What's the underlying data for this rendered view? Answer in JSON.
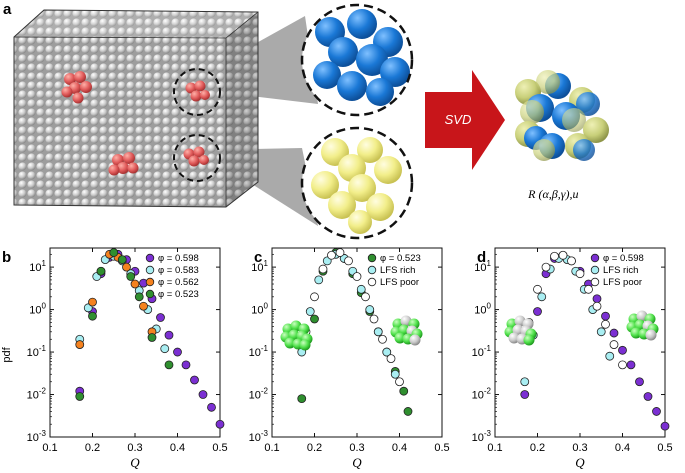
{
  "panel_a": {
    "label": "a",
    "arrow_label": "SVD",
    "rotation_formula": "R (α,β,γ),u⃗",
    "colors": {
      "blue": "#1a78d6",
      "yellow": "#f2ee8a",
      "red": "#e05a5a",
      "arrow": "#c8151a"
    }
  },
  "ylabel": "pdf",
  "chart_data": [
    {
      "type": "scatter",
      "label": "b",
      "xlabel": "Q",
      "ylabel": "pdf",
      "xlim": [
        0.1,
        0.5
      ],
      "ylim_log10": [
        -3,
        1.45
      ],
      "yscale": "log",
      "legend_placement": "top-right",
      "series": [
        {
          "name": "φ = 0.598",
          "color": "#7b2fd2",
          "x": [
            0.17,
            0.2,
            0.22,
            0.24,
            0.26,
            0.28,
            0.3,
            0.32,
            0.34,
            0.36,
            0.38,
            0.4,
            0.42,
            0.44,
            0.46,
            0.48,
            0.5
          ],
          "y": [
            0.012,
            0.9,
            7,
            17,
            20,
            15,
            8,
            4.2,
            1.8,
            0.65,
            0.25,
            0.1,
            0.05,
            0.022,
            0.01,
            0.005,
            0.002
          ]
        },
        {
          "name": "φ = 0.583",
          "color": "#a9eef2",
          "x": [
            0.17,
            0.19,
            0.21,
            0.23,
            0.25,
            0.27,
            0.29,
            0.31,
            0.33,
            0.35,
            0.37
          ],
          "y": [
            0.2,
            1.1,
            6,
            15,
            18,
            14,
            7,
            2.8,
            1,
            0.35,
            0.12
          ]
        },
        {
          "name": "φ = 0.562",
          "color": "#f5821f",
          "x": [
            0.17,
            0.2,
            0.22,
            0.24,
            0.26,
            0.28,
            0.3,
            0.32,
            0.34
          ],
          "y": [
            0.15,
            1.5,
            8,
            20,
            17,
            10,
            4,
            1.2,
            0.3
          ]
        },
        {
          "name": "φ = 0.523",
          "color": "#2f8f2f",
          "x": [
            0.17,
            0.2,
            0.22,
            0.25,
            0.27,
            0.29,
            0.31,
            0.34,
            0.38
          ],
          "y": [
            0.009,
            0.7,
            8,
            22,
            15,
            6,
            2,
            0.22,
            0.05
          ]
        }
      ]
    },
    {
      "type": "scatter",
      "label": "c",
      "xlabel": "Q",
      "xlim": [
        0.1,
        0.5
      ],
      "ylim_log10": [
        -3,
        1.45
      ],
      "yscale": "log",
      "legend_placement": "top-right",
      "series": [
        {
          "name": "φ = 0.523",
          "color": "#2f8f2f",
          "x": [
            0.17,
            0.2,
            0.22,
            0.25,
            0.27,
            0.29,
            0.31,
            0.33,
            0.35,
            0.37,
            0.39,
            0.41,
            0.42
          ],
          "y": [
            0.008,
            0.6,
            8,
            22,
            16,
            7,
            2.5,
            0.9,
            0.3,
            0.1,
            0.035,
            0.012,
            0.004
          ]
        },
        {
          "name": "LFS rich",
          "color": "#a9eef2",
          "x": [
            0.17,
            0.19,
            0.21,
            0.23,
            0.25,
            0.27,
            0.29,
            0.31,
            0.33,
            0.35,
            0.37,
            0.39
          ],
          "y": [
            0.1,
            0.9,
            5,
            14,
            20,
            16,
            8,
            3,
            1,
            0.3,
            0.1,
            0.03
          ]
        },
        {
          "name": "LFS poor",
          "color": "#ffffff",
          "x": [
            0.18,
            0.2,
            0.22,
            0.24,
            0.26,
            0.28,
            0.3,
            0.32,
            0.34,
            0.36,
            0.38,
            0.4
          ],
          "y": [
            0.3,
            2,
            9,
            19,
            22,
            14,
            6,
            2,
            0.6,
            0.2,
            0.07,
            0.02
          ]
        }
      ]
    },
    {
      "type": "scatter",
      "label": "d",
      "xlabel": "Q",
      "xlim": [
        0.1,
        0.5
      ],
      "ylim_log10": [
        -3,
        1.45
      ],
      "yscale": "log",
      "legend_placement": "top-right",
      "series": [
        {
          "name": "φ = 0.598",
          "color": "#7b2fd2",
          "x": [
            0.17,
            0.2,
            0.22,
            0.24,
            0.26,
            0.28,
            0.3,
            0.32,
            0.34,
            0.36,
            0.38,
            0.4,
            0.42,
            0.44,
            0.46,
            0.48,
            0.5
          ],
          "y": [
            0.01,
            0.9,
            7,
            16,
            19,
            14,
            8,
            4,
            1.8,
            0.7,
            0.28,
            0.11,
            0.05,
            0.02,
            0.009,
            0.004,
            0.0018
          ]
        },
        {
          "name": "LFS rich",
          "color": "#a9eef2",
          "x": [
            0.17,
            0.19,
            0.21,
            0.23,
            0.25,
            0.27,
            0.29,
            0.31,
            0.33,
            0.35,
            0.37
          ],
          "y": [
            0.02,
            0.25,
            2,
            9,
            16,
            15,
            8,
            3,
            1,
            0.3,
            0.08
          ]
        },
        {
          "name": "LFS poor",
          "color": "#ffffff",
          "x": [
            0.18,
            0.2,
            0.22,
            0.24,
            0.26,
            0.28,
            0.3,
            0.32,
            0.34,
            0.36,
            0.38,
            0.4
          ],
          "y": [
            0.5,
            3,
            10,
            18,
            19,
            14,
            7,
            3,
            1.2,
            0.45,
            0.15,
            0.05
          ]
        }
      ]
    }
  ],
  "ticks": {
    "x": [
      "0.1",
      "0.2",
      "0.3",
      "0.4",
      "0.5"
    ],
    "y_exp": [
      "-3",
      "-2",
      "-1",
      "0",
      "1"
    ]
  }
}
